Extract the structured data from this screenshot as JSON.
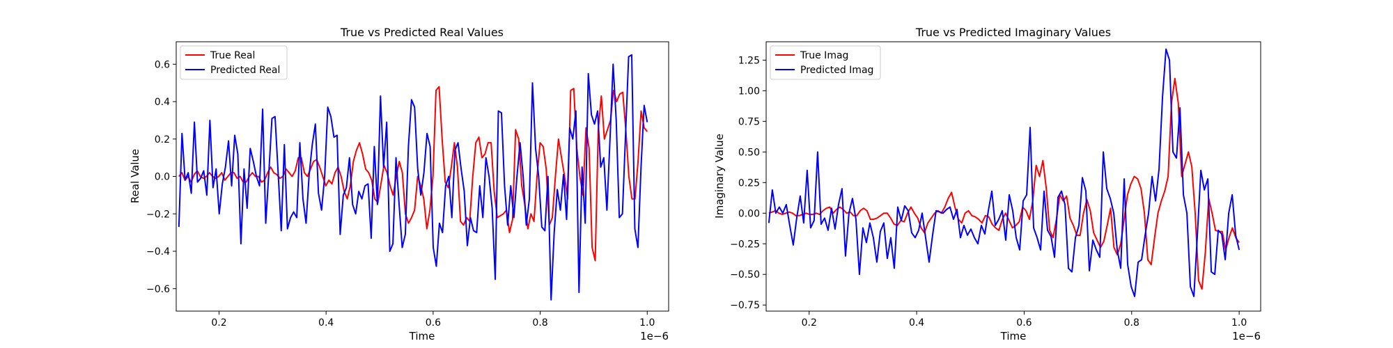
{
  "chart_data": [
    {
      "type": "line",
      "title": "True vs Predicted Real Values",
      "xlabel": "Time",
      "ylabel": "Real Value",
      "x_offset_label": "1e−6",
      "xlim": [
        0.12,
        1.04
      ],
      "ylim": [
        -0.72,
        0.72
      ],
      "x_ticks": [
        0.2,
        0.4,
        0.6,
        0.8,
        1.0
      ],
      "x_tick_labels": [
        "0.2",
        "0.4",
        "0.6",
        "0.8",
        "1.0"
      ],
      "y_ticks": [
        -0.6,
        -0.4,
        -0.2,
        0.0,
        0.2,
        0.4,
        0.6
      ],
      "y_tick_labels": [
        "−0.6",
        "−0.4",
        "−0.2",
        "0.0",
        "0.2",
        "0.4",
        "0.6"
      ],
      "grid": false,
      "legend_position": "top-left",
      "x_start": 0.125,
      "x_end": 1.0,
      "series": [
        {
          "name": "True Real",
          "color": "#ff0000",
          "values": [
            0.0,
            0.02,
            -0.02,
            0.0,
            -0.03,
            0.01,
            0.03,
            0.0,
            -0.01,
            0.0,
            0.02,
            0.0,
            -0.01,
            0.0,
            0.02,
            -0.02,
            0.0,
            0.02,
            0.02,
            -0.01,
            0.0,
            -0.03,
            -0.03,
            0.0,
            0.02,
            0.0,
            0.0,
            -0.03,
            -0.02,
            0.02,
            0.05,
            0.02,
            0.01,
            -0.01,
            0.0,
            0.04,
            0.02,
            0.0,
            0.03,
            0.1,
            0.1,
            0.02,
            0.0,
            0.04,
            0.08,
            0.09,
            0.05,
            0.0,
            -0.05,
            -0.02,
            -0.04,
            0.02,
            0.05,
            0.0,
            -0.08,
            -0.12,
            -0.05,
            0.08,
            0.14,
            0.18,
            0.12,
            0.04,
            0.02,
            -0.02,
            -0.12,
            -0.14,
            -0.04,
            0.06,
            0.02,
            -0.05,
            -0.1,
            0.0,
            0.08,
            0.02,
            -0.2,
            -0.25,
            -0.22,
            -0.18,
            0.0,
            -0.05,
            -0.12,
            -0.28,
            -0.18,
            0.0,
            0.46,
            0.48,
            0.2,
            -0.03,
            -0.06,
            0.05,
            0.18,
            0.05,
            -0.24,
            -0.26,
            -0.22,
            -0.24,
            0.0,
            0.18,
            0.21,
            0.1,
            0.12,
            0.18,
            0.18,
            -0.08,
            -0.22,
            -0.21,
            -0.2,
            -0.18,
            -0.3,
            -0.23,
            0.25,
            0.2,
            -0.05,
            -0.15,
            -0.28,
            -0.2,
            -0.24,
            0.0,
            0.18,
            0.16,
            0.04,
            -0.26,
            -0.22,
            0.0,
            0.2,
            0.1,
            0.0,
            -0.12,
            0.46,
            0.47,
            0.15,
            0.0,
            -0.1,
            0.26,
            0.15,
            -0.38,
            -0.45,
            0.25,
            0.43,
            0.2,
            0.25,
            0.3,
            0.46,
            0.4,
            0.44,
            0.45,
            0.25,
            0.0,
            -0.12,
            -0.12,
            0.08,
            0.35,
            0.26,
            0.24
          ]
        },
        {
          "name": "Predicted Real",
          "color": "#0000ff",
          "values": [
            -0.27,
            0.23,
            -0.02,
            0.02,
            -0.09,
            0.29,
            -0.03,
            -0.01,
            0.03,
            -0.1,
            0.3,
            -0.06,
            0.04,
            -0.2,
            -0.04,
            0.05,
            0.19,
            -0.05,
            0.22,
            0.12,
            -0.36,
            0.04,
            -0.17,
            0.15,
            0.08,
            0.0,
            -0.05,
            0.36,
            -0.25,
            0.02,
            0.31,
            0.32,
            0.02,
            -0.29,
            0.17,
            -0.28,
            -0.22,
            -0.19,
            -0.22,
            0.18,
            -0.12,
            -0.25,
            0.01,
            0.17,
            0.28,
            -0.09,
            -0.18,
            0.0,
            0.37,
            0.32,
            0.21,
            0.22,
            -0.31,
            -0.1,
            -0.06,
            0.1,
            -0.15,
            -0.2,
            -0.08,
            -0.12,
            -0.05,
            -0.04,
            -0.33,
            0.16,
            -0.15,
            0.43,
            0.05,
            0.29,
            -0.4,
            -0.36,
            0.1,
            -0.15,
            -0.38,
            -0.31,
            0.16,
            0.41,
            0.37,
            0.04,
            -0.1,
            0.02,
            0.23,
            0.16,
            -0.38,
            -0.48,
            -0.25,
            -0.3,
            -0.05,
            0.0,
            -0.22,
            0.14,
            0.18,
            0.04,
            -0.08,
            -0.37,
            -0.22,
            -0.29,
            -0.3,
            -0.05,
            -0.22,
            0.1,
            0.0,
            -0.17,
            -0.55,
            0.35,
            0.34,
            -0.05,
            -0.26,
            -0.05,
            -0.22,
            0.0,
            0.18,
            0.0,
            -0.26,
            -0.12,
            0.5,
            0.15,
            0.0,
            -0.27,
            -0.29,
            0.0,
            -0.66,
            -0.3,
            -0.07,
            -0.18,
            0.01,
            -0.23,
            0.26,
            0.2,
            0.35,
            -0.62,
            0.05,
            -0.25,
            0.55,
            0.33,
            0.28,
            0.35,
            0.05,
            0.1,
            -0.18,
            0.2,
            0.6,
            0.3,
            -0.22,
            -0.2,
            0.22,
            0.64,
            0.65,
            -0.28,
            -0.38,
            0.05,
            0.38,
            0.29
          ]
        }
      ]
    },
    {
      "type": "line",
      "title": "True vs Predicted Imaginary Values",
      "xlabel": "Time",
      "ylabel": "Imaginary Value",
      "x_offset_label": "1e−6",
      "xlim": [
        0.12,
        1.04
      ],
      "ylim": [
        -0.8,
        1.4
      ],
      "x_ticks": [
        0.2,
        0.4,
        0.6,
        0.8,
        1.0
      ],
      "x_tick_labels": [
        "0.2",
        "0.4",
        "0.6",
        "0.8",
        "1.0"
      ],
      "y_ticks": [
        -0.75,
        -0.5,
        -0.25,
        0.0,
        0.25,
        0.5,
        0.75,
        1.0,
        1.25
      ],
      "y_tick_labels": [
        "−0.75",
        "−0.50",
        "−0.25",
        "0.00",
        "0.25",
        "0.50",
        "0.75",
        "1.00",
        "1.25"
      ],
      "grid": false,
      "legend_position": "top-left",
      "x_start": 0.125,
      "x_end": 1.0,
      "series": [
        {
          "name": "True Imag",
          "color": "#ff0000",
          "values": [
            0.0,
            0.01,
            0.02,
            0.0,
            -0.01,
            0.0,
            0.01,
            0.0,
            -0.02,
            -0.02,
            -0.01,
            0.0,
            -0.01,
            -0.01,
            0.0,
            -0.01,
            0.02,
            0.04,
            0.05,
            0.0,
            0.03,
            0.05,
            0.03,
            0.0,
            0.01,
            -0.02,
            -0.02,
            0.02,
            0.04,
            0.02,
            -0.05,
            -0.05,
            -0.04,
            -0.02,
            0.0,
            0.0,
            -0.04,
            -0.09,
            -0.1,
            -0.06,
            -0.07,
            0.0,
            0.05,
            0.0,
            -0.04,
            -0.12,
            -0.16,
            -0.08,
            -0.04,
            0.0,
            0.02,
            0.0,
            0.05,
            0.12,
            0.17,
            0.05,
            -0.05,
            -0.08,
            0.0,
            0.02,
            -0.02,
            -0.03,
            -0.05,
            -0.08,
            -0.02,
            -0.03,
            -0.09,
            -0.12,
            -0.14,
            -0.05,
            0.0,
            -0.06,
            -0.12,
            -0.1,
            -0.07,
            0.05,
            0.02,
            -0.05,
            0.1,
            0.39,
            0.3,
            0.43,
            0.2,
            -0.14,
            -0.2,
            -0.05,
            0.15,
            0.1,
            0.14,
            -0.04,
            -0.1,
            -0.18,
            -0.18,
            0.0,
            0.11,
            0.02,
            -0.16,
            -0.22,
            -0.28,
            -0.23,
            -0.1,
            0.04,
            -0.28,
            -0.34,
            -0.25,
            -0.05,
            0.15,
            0.24,
            0.3,
            0.28,
            0.2,
            0.0,
            -0.38,
            -0.42,
            -0.2,
            0.0,
            0.1,
            0.18,
            0.3,
            0.9,
            1.1,
            0.9,
            0.3,
            0.4,
            0.5,
            0.38,
            0.0,
            -0.55,
            -0.62,
            -0.32,
            0.12,
            0.0,
            -0.14,
            -0.15,
            -0.15,
            -0.3,
            -0.2,
            -0.12,
            -0.2,
            -0.24
          ]
        },
        {
          "name": "Predicted Imag",
          "color": "#0000ff",
          "values": [
            -0.08,
            0.19,
            0.0,
            0.05,
            0.0,
            0.07,
            -0.1,
            -0.26,
            -0.04,
            0.14,
            -0.08,
            0.35,
            -0.12,
            -0.06,
            0.5,
            -0.09,
            -0.04,
            -0.14,
            0.04,
            -0.13,
            0.07,
            0.2,
            -0.35,
            0.0,
            0.12,
            -0.05,
            -0.5,
            -0.12,
            -0.24,
            -0.08,
            -0.2,
            -0.4,
            -0.15,
            -0.08,
            -0.37,
            -0.2,
            -0.45,
            0.05,
            -0.06,
            0.06,
            0.02,
            -0.16,
            -0.2,
            -0.14,
            0.0,
            -0.2,
            -0.4,
            -0.18,
            0.02,
            0.01,
            0.0,
            0.03,
            0.05,
            -0.05,
            0.03,
            -0.2,
            -0.1,
            -0.18,
            -0.13,
            -0.2,
            -0.25,
            -0.1,
            -0.17,
            0.02,
            0.18,
            -0.1,
            -0.05,
            0.02,
            -0.22,
            0.15,
            0.02,
            -0.2,
            -0.3,
            0.1,
            0.15,
            0.7,
            -0.12,
            -0.2,
            -0.3,
            0.18,
            -0.14,
            -0.19,
            -0.36,
            0.13,
            0.18,
            0.07,
            -0.45,
            -0.48,
            -0.2,
            -0.1,
            0.29,
            0.18,
            -0.47,
            -0.22,
            -0.3,
            -0.36,
            0.5,
            0.2,
            0.12,
            0.0,
            -0.3,
            -0.45,
            0.28,
            -0.42,
            -0.6,
            -0.68,
            -0.4,
            -0.38,
            -0.18,
            0.0,
            0.3,
            0.1,
            0.36,
            0.95,
            1.34,
            1.25,
            0.5,
            0.45,
            0.86,
            0.15,
            0.0,
            -0.6,
            -0.68,
            -0.18,
            0.35,
            0.19,
            0.28,
            -0.48,
            -0.5,
            -0.14,
            -0.17,
            -0.38,
            0.0,
            0.15,
            -0.18,
            -0.3
          ]
        }
      ]
    }
  ]
}
